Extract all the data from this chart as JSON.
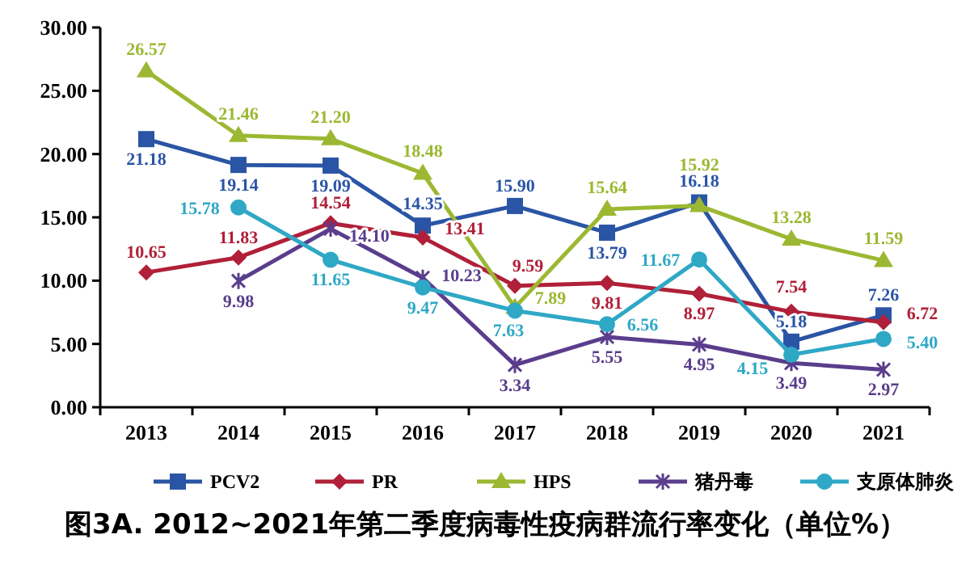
{
  "chart_data": {
    "type": "line",
    "title": "图3A. 2012~2021年第二季度病毒性疫病群流行率变化（单位%）",
    "categories": [
      "2013",
      "2014",
      "2015",
      "2016",
      "2017",
      "2018",
      "2019",
      "2020",
      "2021"
    ],
    "ylim": [
      0,
      30
    ],
    "yticks": [
      {
        "value": 0,
        "label": "0.00"
      },
      {
        "value": 5,
        "label": "5.00"
      },
      {
        "value": 10,
        "label": "10.00"
      },
      {
        "value": 15,
        "label": "15.00"
      },
      {
        "value": 20,
        "label": "20.00"
      },
      {
        "value": 25,
        "label": "25.00"
      },
      {
        "value": 30,
        "label": "30.00"
      }
    ],
    "grid": false,
    "legend": "bottom",
    "line_style": "solid",
    "series": [
      {
        "name": "PCV2",
        "color": "#2a55a5",
        "marker": "square",
        "values": [
          21.18,
          19.14,
          19.09,
          14.35,
          15.9,
          13.79,
          16.18,
          5.18,
          7.26
        ],
        "value_labels": [
          "21.18",
          "19.14",
          "19.09",
          "14.35",
          "15.90",
          "13.79",
          "16.18",
          "5.18",
          "7.26"
        ]
      },
      {
        "name": "PR",
        "color": "#b02038",
        "marker": "diamond",
        "values": [
          10.65,
          11.83,
          14.54,
          13.41,
          9.59,
          9.81,
          8.97,
          7.54,
          6.72
        ],
        "value_labels": [
          "10.65",
          "11.83",
          "14.54",
          "13.41",
          "9.59",
          "9.81",
          "8.97",
          "7.54",
          "6.72"
        ]
      },
      {
        "name": "HPS",
        "color": "#9cb832",
        "marker": "triangle",
        "values": [
          26.57,
          21.46,
          21.2,
          18.48,
          7.89,
          15.64,
          15.92,
          13.28,
          11.59
        ],
        "value_labels": [
          "26.57",
          "21.46",
          "21.20",
          "18.48",
          "7.89",
          "15.64",
          "15.92",
          "13.28",
          "11.59"
        ]
      },
      {
        "name": "猪丹毒",
        "color": "#5a3d8c",
        "marker": "cross",
        "values": [
          null,
          9.98,
          14.1,
          10.23,
          3.34,
          5.55,
          4.95,
          3.49,
          2.97
        ],
        "value_labels": [
          null,
          "9.98",
          "14.10",
          "10.23",
          "3.34",
          "5.55",
          "4.95",
          "3.49",
          "2.97"
        ]
      },
      {
        "name": "支原体肺炎",
        "color": "#2fa8c6",
        "marker": "circle",
        "values": [
          null,
          15.78,
          11.65,
          9.47,
          7.63,
          6.56,
          11.67,
          4.15,
          5.4
        ],
        "value_labels": [
          null,
          "15.78",
          "11.65",
          "9.47",
          "7.63",
          "6.56",
          "11.67",
          "4.15",
          "5.40"
        ]
      }
    ]
  }
}
